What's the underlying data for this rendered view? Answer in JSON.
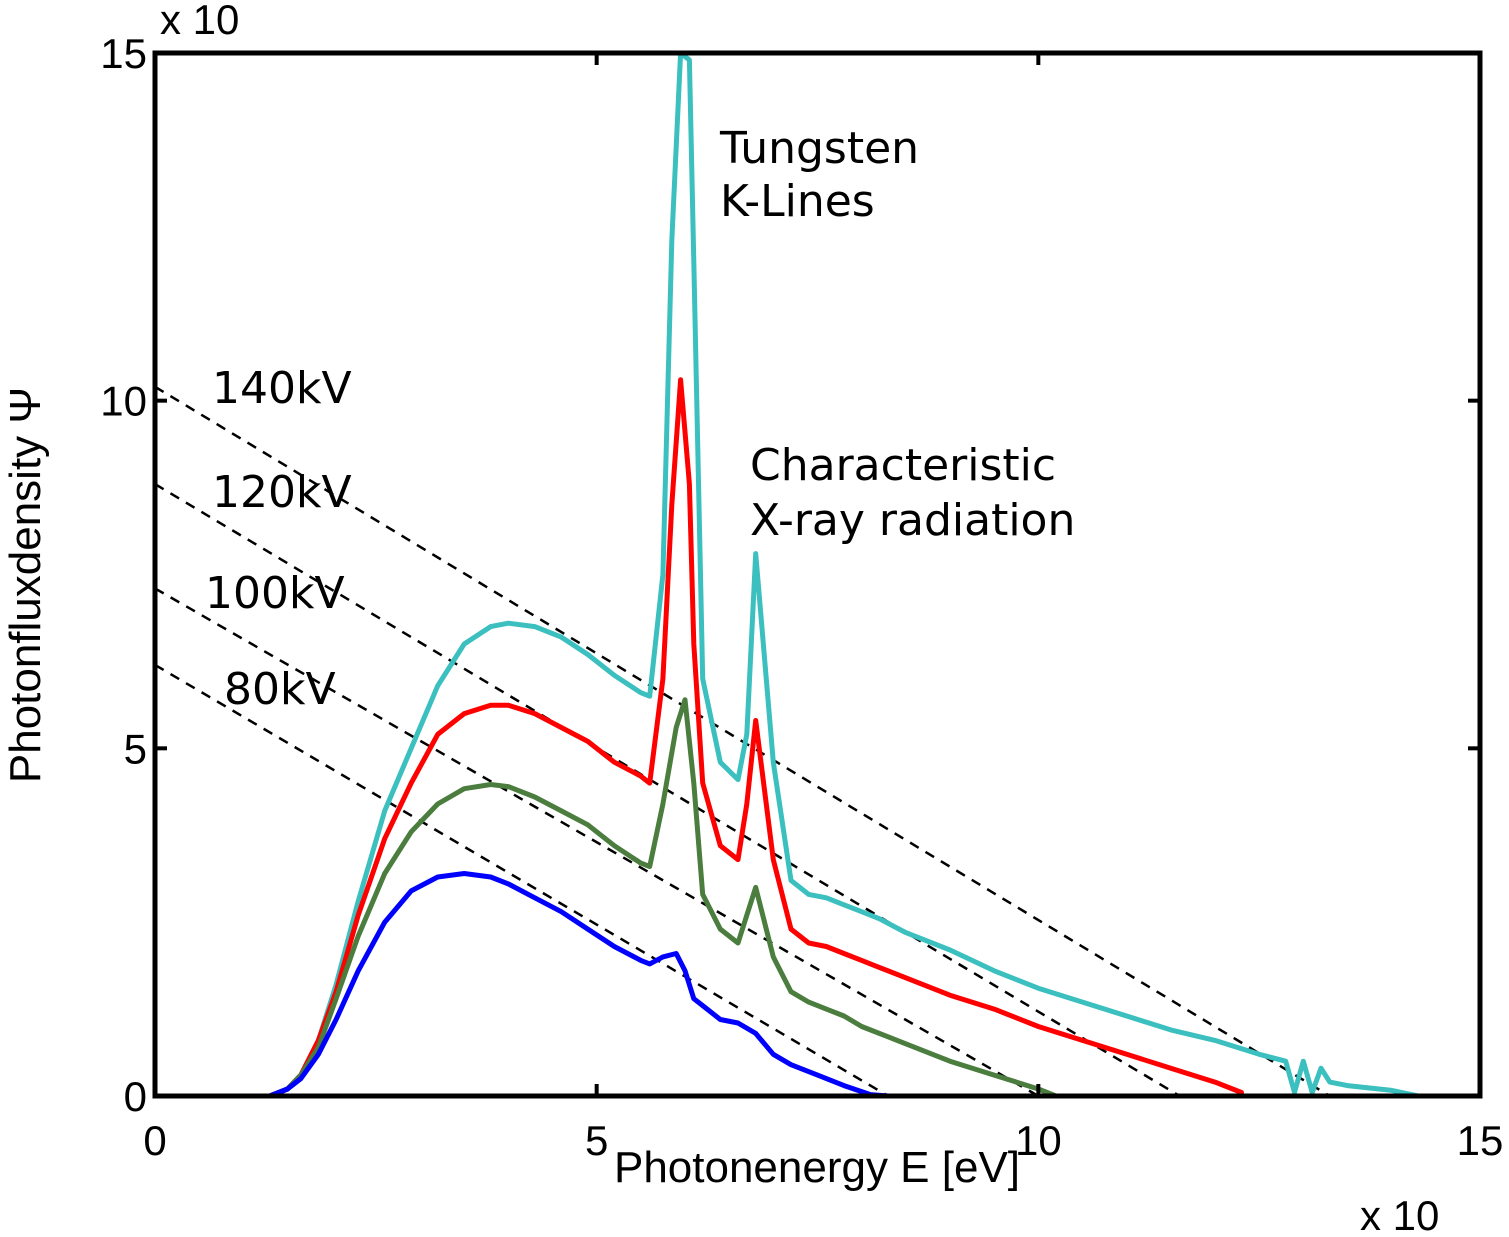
{
  "chart_data": {
    "type": "line",
    "xlabel": "Photonenergy E [eV]",
    "ylabel": "Photonfluxdensity Ψ",
    "x_multiplier": "x 10",
    "y_multiplier": "x 10",
    "xlim": [
      0,
      15
    ],
    "ylim": [
      0,
      15
    ],
    "xticks": [
      "0",
      "5",
      "10",
      "15"
    ],
    "yticks": [
      "0",
      "5",
      "10",
      "15"
    ],
    "grid": false,
    "annotations": [
      {
        "id": "tungsten",
        "lines": [
          "Tungsten",
          "K-Lines"
        ]
      },
      {
        "id": "characteristic",
        "lines": [
          "Characteristic",
          "X-ray radiation"
        ]
      }
    ],
    "kramers_lines": [
      {
        "label": "140kV",
        "x": [
          0,
          13.3
        ],
        "y": [
          10.2,
          0
        ]
      },
      {
        "label": "120kV",
        "x": [
          0,
          11.6
        ],
        "y": [
          8.8,
          0
        ]
      },
      {
        "label": "100kV",
        "x": [
          0,
          10.0
        ],
        "y": [
          7.3,
          0
        ]
      },
      {
        "label": "80kV",
        "x": [
          0,
          8.3
        ],
        "y": [
          6.2,
          0
        ]
      }
    ],
    "series": [
      {
        "color": "#3cbfbf",
        "x": [
          0,
          1.3,
          1.5,
          1.65,
          1.85,
          2.05,
          2.3,
          2.6,
          2.9,
          3.2,
          3.5,
          3.8,
          4.0,
          4.3,
          4.6,
          4.9,
          5.2,
          5.5,
          5.6,
          5.75,
          5.85,
          5.95,
          6.05,
          6.1,
          6.2,
          6.4,
          6.6,
          6.7,
          6.8,
          7.0,
          7.2,
          7.4,
          7.6,
          7.8,
          8.0,
          8.2,
          8.5,
          9.0,
          9.5,
          10.0,
          10.5,
          11.0,
          11.5,
          12.0,
          12.5,
          12.8,
          12.9,
          13.0,
          13.1,
          13.2,
          13.3,
          13.5,
          14.0,
          14.3
        ],
        "y": [
          0,
          0,
          0.1,
          0.3,
          0.8,
          1.6,
          2.8,
          4.1,
          5.0,
          5.9,
          6.5,
          6.75,
          6.8,
          6.75,
          6.6,
          6.35,
          6.05,
          5.8,
          5.75,
          7.5,
          12.3,
          15.0,
          14.9,
          12.0,
          6.0,
          4.8,
          4.55,
          5.2,
          7.8,
          4.8,
          3.1,
          2.9,
          2.85,
          2.75,
          2.65,
          2.55,
          2.35,
          2.1,
          1.8,
          1.55,
          1.35,
          1.15,
          0.95,
          0.8,
          0.6,
          0.5,
          0.05,
          0.5,
          0.05,
          0.4,
          0.2,
          0.15,
          0.08,
          0
        ]
      },
      {
        "color": "#ff0000",
        "x": [
          0,
          1.3,
          1.5,
          1.65,
          1.85,
          2.05,
          2.3,
          2.6,
          2.9,
          3.2,
          3.5,
          3.8,
          4.0,
          4.3,
          4.6,
          4.9,
          5.2,
          5.5,
          5.6,
          5.75,
          5.85,
          5.95,
          6.05,
          6.1,
          6.2,
          6.4,
          6.6,
          6.7,
          6.8,
          7.0,
          7.2,
          7.4,
          7.6,
          7.8,
          8.0,
          8.2,
          8.5,
          9.0,
          9.5,
          10.0,
          10.5,
          11.0,
          11.5,
          12.0,
          12.3
        ],
        "y": [
          0,
          0,
          0.1,
          0.3,
          0.8,
          1.5,
          2.6,
          3.7,
          4.5,
          5.2,
          5.5,
          5.62,
          5.62,
          5.5,
          5.3,
          5.1,
          4.8,
          4.6,
          4.5,
          6.0,
          8.5,
          10.3,
          8.8,
          6.5,
          4.5,
          3.6,
          3.4,
          4.2,
          5.4,
          3.4,
          2.4,
          2.2,
          2.15,
          2.05,
          1.95,
          1.85,
          1.7,
          1.45,
          1.25,
          1.0,
          0.8,
          0.6,
          0.4,
          0.2,
          0.05
        ]
      },
      {
        "color": "#4a7d3e",
        "x": [
          0,
          1.3,
          1.5,
          1.65,
          1.85,
          2.05,
          2.3,
          2.6,
          2.9,
          3.2,
          3.5,
          3.8,
          4.0,
          4.3,
          4.6,
          4.9,
          5.2,
          5.5,
          5.6,
          5.75,
          5.9,
          6.0,
          6.1,
          6.2,
          6.4,
          6.6,
          6.7,
          6.8,
          7.0,
          7.2,
          7.4,
          7.6,
          7.8,
          8.0,
          8.5,
          9.0,
          9.5,
          10.0,
          10.2
        ],
        "y": [
          0,
          0,
          0.1,
          0.3,
          0.7,
          1.4,
          2.3,
          3.2,
          3.8,
          4.2,
          4.42,
          4.48,
          4.45,
          4.3,
          4.1,
          3.9,
          3.6,
          3.35,
          3.3,
          4.2,
          5.3,
          5.7,
          4.5,
          2.9,
          2.4,
          2.2,
          2.6,
          3.0,
          2.0,
          1.5,
          1.35,
          1.25,
          1.15,
          1.0,
          0.75,
          0.5,
          0.3,
          0.1,
          0
        ]
      },
      {
        "color": "#0000ff",
        "x": [
          0,
          1.3,
          1.5,
          1.65,
          1.85,
          2.05,
          2.3,
          2.6,
          2.9,
          3.2,
          3.5,
          3.8,
          4.0,
          4.3,
          4.6,
          4.9,
          5.2,
          5.5,
          5.6,
          5.75,
          5.9,
          6.0,
          6.1,
          6.2,
          6.4,
          6.6,
          6.8,
          7.0,
          7.2,
          7.5,
          7.8,
          8.1,
          8.3
        ],
        "y": [
          0,
          0,
          0.1,
          0.25,
          0.6,
          1.1,
          1.8,
          2.5,
          2.95,
          3.15,
          3.2,
          3.15,
          3.05,
          2.85,
          2.65,
          2.4,
          2.15,
          1.95,
          1.9,
          2.0,
          2.05,
          1.8,
          1.4,
          1.3,
          1.1,
          1.05,
          0.9,
          0.6,
          0.45,
          0.3,
          0.15,
          0.02,
          0
        ]
      }
    ]
  }
}
